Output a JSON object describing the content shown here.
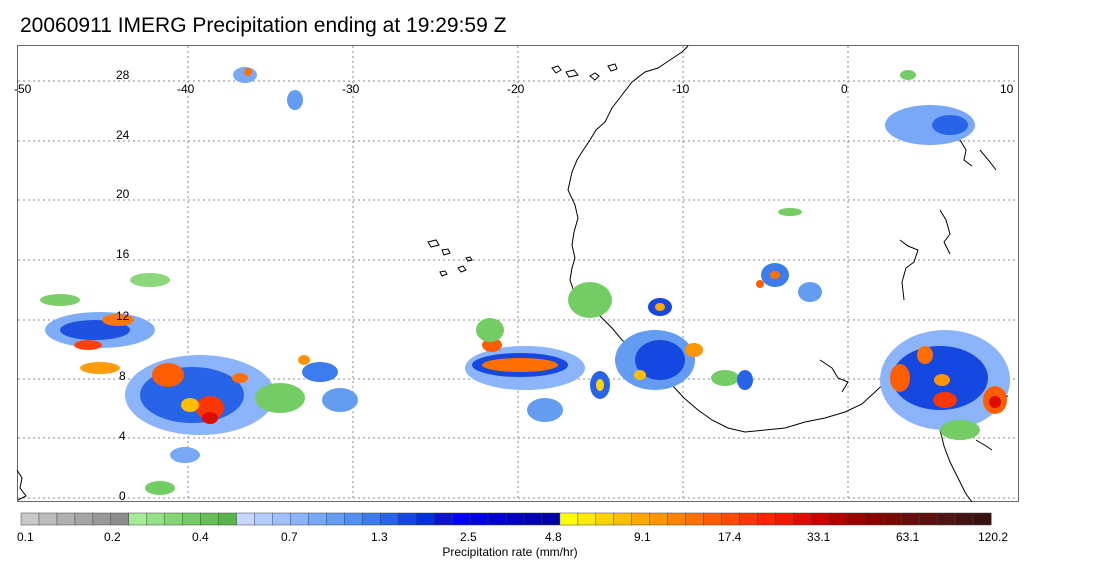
{
  "title": "20060911 IMERG Precipitation ending at 19:29:59 Z",
  "lon_labels": [
    "-50",
    "-40",
    "-30",
    "-20",
    "-10",
    "0",
    "10"
  ],
  "lat_labels": [
    "28",
    "24",
    "20",
    "16",
    "12",
    "8",
    "4",
    "0"
  ],
  "colorbar": {
    "title": "Precipitation rate (mm/hr)",
    "ticks": [
      "0.1",
      "0.2",
      "0.4",
      "0.7",
      "1.3",
      "2.5",
      "4.8",
      "9.1",
      "17.4",
      "33.1",
      "63.1",
      "120.2"
    ],
    "colors": [
      "#c8c8c8",
      "#bcbcbc",
      "#b0b0b0",
      "#a4a4a4",
      "#989898",
      "#8c8c8c",
      "#a6ec96",
      "#94e084",
      "#84d674",
      "#74cc64",
      "#64c056",
      "#56b44a",
      "#c6d6ff",
      "#b4ccff",
      "#a0c0ff",
      "#8cb4fa",
      "#78a8f6",
      "#649cf2",
      "#5090f0",
      "#3c7cec",
      "#2864e8",
      "#1448e0",
      "#0030d8",
      "#0a14c8",
      "#0000ff",
      "#0000e8",
      "#0000d0",
      "#0000c0",
      "#0000b0",
      "#0000a0",
      "#ffff00",
      "#ffea00",
      "#ffd400",
      "#ffbe00",
      "#ffa800",
      "#ff9600",
      "#ff8200",
      "#ff7000",
      "#ff5e00",
      "#ff4a00",
      "#ff3600",
      "#ff2400",
      "#f41800",
      "#e00c00",
      "#c80000",
      "#b00000",
      "#980000",
      "#880000",
      "#780800",
      "#6a0c0c",
      "#5c1010",
      "#501414",
      "#441212",
      "#3a1010"
    ]
  }
}
